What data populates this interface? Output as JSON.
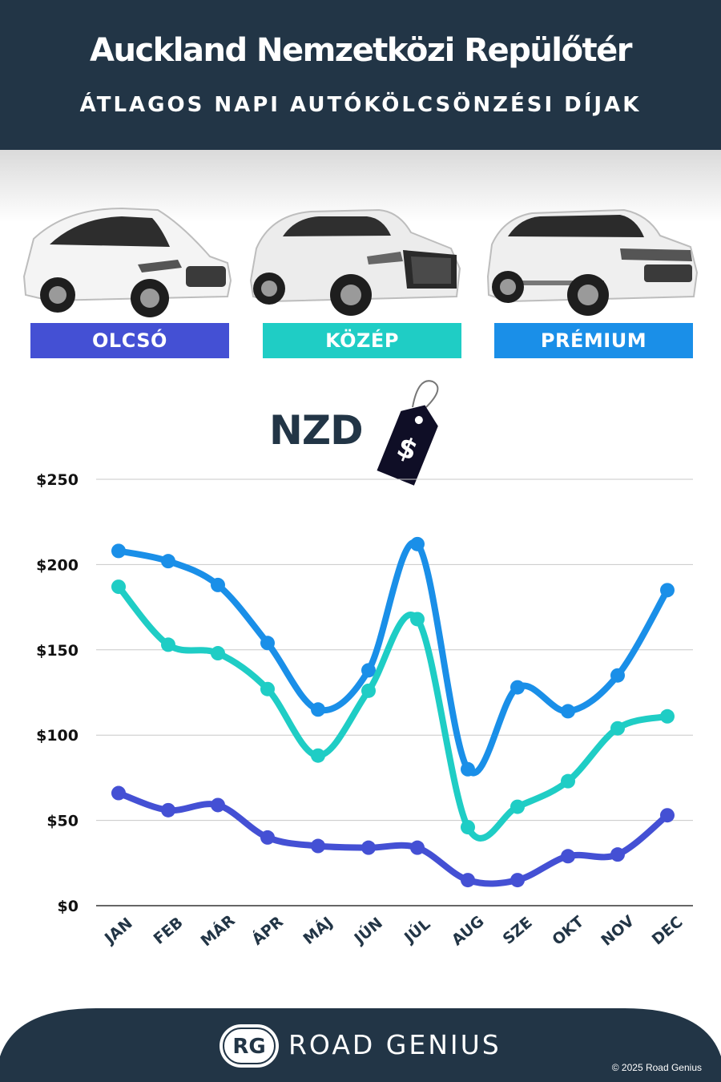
{
  "header": {
    "title": "Auckland Nemzetközi Repülőtér",
    "subtitle": "ÁTLAGOS NAPI AUTÓKÖLCSÖNZÉSI DÍJAK"
  },
  "categories": [
    {
      "label": "OLCSÓ",
      "color": "#4450d4"
    },
    {
      "label": "KÖZÉP",
      "color": "#1fcdc5"
    },
    {
      "label": "PRÉMIUM",
      "color": "#1a8fe8"
    }
  ],
  "currency_label": "NZD",
  "tag_symbol": "$",
  "chart_data": {
    "type": "line",
    "categories": [
      "JAN",
      "FEB",
      "MÁR",
      "ÁPR",
      "MÁJ",
      "JÚN",
      "JÚL",
      "AUG",
      "SZE",
      "OKT",
      "NOV",
      "DEC"
    ],
    "series": [
      {
        "name": "PRÉMIUM",
        "color": "#1a8fe8",
        "values": [
          208,
          202,
          188,
          154,
          115,
          138,
          212,
          80,
          128,
          114,
          135,
          185
        ]
      },
      {
        "name": "KÖZÉP",
        "color": "#1fcdc5",
        "values": [
          187,
          153,
          148,
          127,
          88,
          126,
          168,
          46,
          58,
          73,
          104,
          111
        ]
      },
      {
        "name": "OLCSÓ",
        "color": "#4450d4",
        "values": [
          66,
          56,
          59,
          40,
          35,
          34,
          34,
          15,
          15,
          29,
          30,
          53
        ]
      }
    ],
    "ylim": [
      0,
      250
    ],
    "yticks": [
      "$0",
      "$50",
      "$100",
      "$150",
      "$200",
      "$250"
    ],
    "grid": true
  },
  "footer": {
    "logo_text": "RG",
    "brand": "ROAD GENIUS",
    "copyright": "© 2025 Road Genius",
    "background": "#223546"
  }
}
